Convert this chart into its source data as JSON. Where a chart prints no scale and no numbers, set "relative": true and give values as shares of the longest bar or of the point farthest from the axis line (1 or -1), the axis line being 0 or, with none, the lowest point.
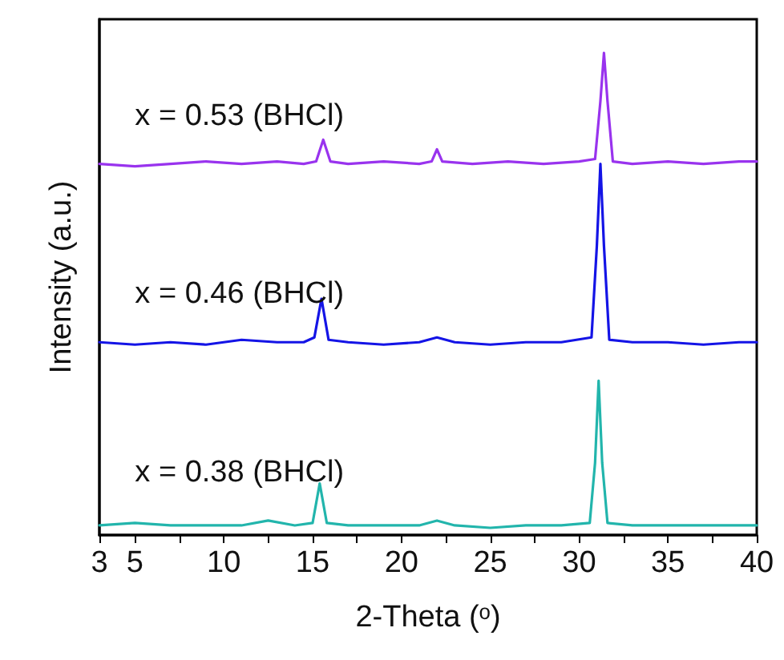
{
  "chart_data": {
    "type": "line",
    "relative": true,
    "xlabel": "2-Theta (ᵒ)",
    "ylabel": "Intensity (a.u.)",
    "xlim": [
      3,
      40
    ],
    "xticks": [
      3,
      5,
      {
        "value": 7.5,
        "label": null
      },
      10,
      {
        "value": 12.5,
        "label": null
      },
      15,
      {
        "value": 17.5,
        "label": null
      },
      20,
      {
        "value": 22.5,
        "label": null
      },
      25,
      {
        "value": 27.5,
        "label": null
      },
      30,
      {
        "value": 32.5,
        "label": null
      },
      35,
      {
        "value": 37.5,
        "label": null
      },
      40
    ],
    "grid": false,
    "legend": false,
    "marker": "none",
    "line_style": "solid",
    "series": [
      {
        "name": "x = 0.53 (BHCl)",
        "color": "#9933ee",
        "x": [
          3,
          5,
          7,
          9,
          11,
          13,
          14.5,
          15.2,
          15.6,
          16,
          17,
          19,
          21,
          21.7,
          22,
          22.3,
          24,
          26,
          28,
          30,
          30.9,
          31.2,
          31.4,
          31.6,
          31.9,
          33,
          35,
          37,
          39,
          40
        ],
        "values": [
          0.77,
          0.765,
          0.77,
          0.775,
          0.77,
          0.775,
          0.77,
          0.775,
          0.82,
          0.775,
          0.77,
          0.775,
          0.77,
          0.775,
          0.8,
          0.775,
          0.77,
          0.775,
          0.77,
          0.775,
          0.78,
          0.9,
          1,
          0.9,
          0.775,
          0.77,
          0.775,
          0.77,
          0.775,
          0.775
        ]
      },
      {
        "name": "x = 0.46 (BHCl)",
        "color": "#1414e6",
        "x": [
          3,
          5,
          7,
          9,
          11,
          13,
          14.5,
          15.1,
          15.5,
          15.9,
          17,
          19,
          21,
          22,
          23,
          25,
          27,
          29,
          30.7,
          31,
          31.2,
          31.4,
          31.7,
          33,
          35,
          37,
          39,
          40
        ],
        "values": [
          0.4,
          0.395,
          0.4,
          0.395,
          0.405,
          0.4,
          0.4,
          0.41,
          0.49,
          0.405,
          0.4,
          0.395,
          0.4,
          0.41,
          0.4,
          0.395,
          0.4,
          0.4,
          0.41,
          0.6,
          0.77,
          0.6,
          0.405,
          0.4,
          0.4,
          0.395,
          0.4,
          0.4
        ]
      },
      {
        "name": "x = 0.38 (BHCl)",
        "color": "#22b5ac",
        "x": [
          3,
          5,
          7,
          9,
          11,
          12.5,
          14,
          15,
          15.4,
          15.8,
          17,
          19,
          21,
          22,
          23,
          25,
          27,
          29,
          30.6,
          30.9,
          31.1,
          31.3,
          31.6,
          33,
          35,
          37,
          39,
          40
        ],
        "values": [
          0.02,
          0.025,
          0.02,
          0.02,
          0.02,
          0.03,
          0.02,
          0.025,
          0.107,
          0.025,
          0.02,
          0.02,
          0.02,
          0.03,
          0.02,
          0.015,
          0.02,
          0.02,
          0.025,
          0.15,
          0.32,
          0.15,
          0.025,
          0.02,
          0.02,
          0.02,
          0.02,
          0.02
        ]
      }
    ]
  }
}
